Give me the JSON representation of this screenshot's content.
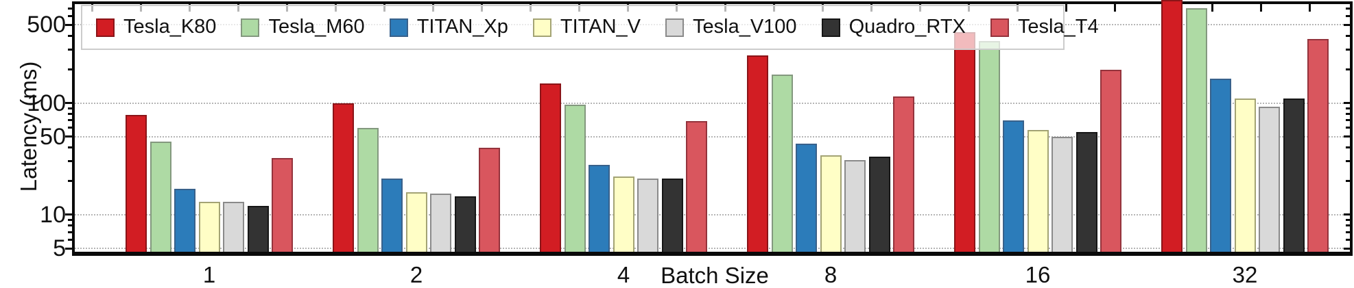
{
  "figure": {
    "background": "#ffffff",
    "frame_color": "#0a0a0a",
    "grid_color": "#b5b5b5",
    "legend_background": "rgba(255,255,255,0.70)"
  },
  "chart_data": {
    "type": "bar",
    "title": "",
    "xlabel": "Batch Size",
    "ylabel": "Latency (ms)",
    "yscale": "log",
    "ylim": [
      4.3,
      840
    ],
    "yticks": [
      5,
      10,
      50,
      100,
      500
    ],
    "ytick_labels": [
      "5",
      "10",
      "50",
      "100",
      "500"
    ],
    "yminor_ticks": [
      6,
      7,
      8,
      9,
      20,
      30,
      40,
      60,
      70,
      80,
      90,
      200,
      300,
      400,
      600,
      700
    ],
    "grid": "horizontal dotted lines at major y ticks",
    "legend_position": "top inside, horizontal row",
    "categories": [
      "1",
      "2",
      "4",
      "8",
      "16",
      "32"
    ],
    "series": [
      {
        "name": "Tesla_K80",
        "color": "#d21d23",
        "edge": "#8b1418",
        "values": [
          78,
          100,
          150,
          265,
          430,
          830
        ]
      },
      {
        "name": "Tesla_M60",
        "color": "#aedaa4",
        "edge": "#83987e",
        "values": [
          45,
          60,
          96,
          180,
          360,
          705
        ]
      },
      {
        "name": "TITAN_Xp",
        "color": "#2c7cba",
        "edge": "#38618b",
        "values": [
          17,
          21,
          28,
          43,
          70,
          165
        ]
      },
      {
        "name": "TITAN_V",
        "color": "#fffec6",
        "edge": "#a3a374",
        "values": [
          13,
          16,
          22,
          34,
          57,
          110
        ]
      },
      {
        "name": "Tesla_V100",
        "color": "#d9d9d9",
        "edge": "#8a8a8a",
        "values": [
          13,
          15.5,
          21,
          31,
          50,
          93
        ]
      },
      {
        "name": "Quadro_RTX",
        "color": "#333333",
        "edge": "#161616",
        "values": [
          12,
          14.5,
          21,
          33,
          55,
          109
        ]
      },
      {
        "name": "Tesla_T4",
        "color": "#d9565e",
        "edge": "#94333c",
        "values": [
          32,
          40,
          69,
          114,
          197,
          375
        ]
      }
    ],
    "clipped_bars": [
      {
        "series": "Tesla_K80",
        "category": "32",
        "note": "bar reaches top of axis"
      }
    ]
  }
}
